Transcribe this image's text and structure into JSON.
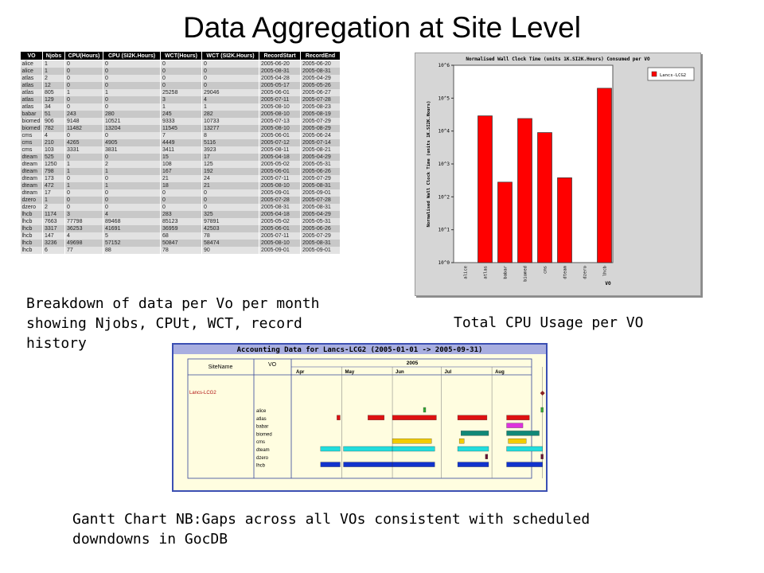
{
  "title": "Data Aggregation at Site Level",
  "table": {
    "columns": [
      "VO",
      "Njobs",
      "CPU(Hours)",
      "CPU (SI2K.Hours)",
      "WCT(Hours)",
      "WCT (SI2K.Hours)",
      "RecordStart",
      "RecordEnd"
    ],
    "rows": [
      [
        "alice",
        "1",
        "0",
        "0",
        "0",
        "0",
        "2005-06-20",
        "2005-06-20"
      ],
      [
        "alice",
        "1",
        "0",
        "0",
        "0",
        "0",
        "2005-08-31",
        "2005-08-31"
      ],
      [
        "atlas",
        "2",
        "0",
        "0",
        "0",
        "0",
        "2005-04-28",
        "2005-04-29"
      ],
      [
        "atlas",
        "12",
        "0",
        "0",
        "0",
        "0",
        "2005-05-17",
        "2005-05-26"
      ],
      [
        "atlas",
        "805",
        "1",
        "1",
        "25258",
        "29046",
        "2005-06-01",
        "2005-06-27"
      ],
      [
        "atlas",
        "129",
        "0",
        "0",
        "3",
        "4",
        "2005-07-11",
        "2005-07-28"
      ],
      [
        "atlas",
        "34",
        "0",
        "0",
        "1",
        "1",
        "2005-08-10",
        "2005-08-23"
      ],
      [
        "babar",
        "51",
        "243",
        "280",
        "245",
        "282",
        "2005-08-10",
        "2005-08-19"
      ],
      [
        "biomed",
        "906",
        "9148",
        "10521",
        "9333",
        "10733",
        "2005-07-13",
        "2005-07-29"
      ],
      [
        "biomed",
        "782",
        "11482",
        "13204",
        "11545",
        "13277",
        "2005-08-10",
        "2005-08-29"
      ],
      [
        "cms",
        "4",
        "0",
        "0",
        "7",
        "8",
        "2005-06-01",
        "2005-06-24"
      ],
      [
        "cms",
        "210",
        "4265",
        "4905",
        "4449",
        "5116",
        "2005-07-12",
        "2005-07-14"
      ],
      [
        "cms",
        "103",
        "3331",
        "3831",
        "3411",
        "3923",
        "2005-08-11",
        "2005-08-21"
      ],
      [
        "dteam",
        "525",
        "0",
        "0",
        "15",
        "17",
        "2005-04-18",
        "2005-04-29"
      ],
      [
        "dteam",
        "1250",
        "1",
        "2",
        "108",
        "125",
        "2005-05-02",
        "2005-05-31"
      ],
      [
        "dteam",
        "798",
        "1",
        "1",
        "167",
        "192",
        "2005-06-01",
        "2005-06-26"
      ],
      [
        "dteam",
        "173",
        "0",
        "0",
        "21",
        "24",
        "2005-07-11",
        "2005-07-29"
      ],
      [
        "dteam",
        "472",
        "1",
        "1",
        "18",
        "21",
        "2005-08-10",
        "2005-08-31"
      ],
      [
        "dteam",
        "17",
        "0",
        "0",
        "0",
        "0",
        "2005-09-01",
        "2005-09-01"
      ],
      [
        "dzero",
        "1",
        "0",
        "0",
        "0",
        "0",
        "2005-07-28",
        "2005-07-28"
      ],
      [
        "dzero",
        "2",
        "0",
        "0",
        "0",
        "0",
        "2005-08-31",
        "2005-08-31"
      ],
      [
        "lhcb",
        "1174",
        "3",
        "4",
        "283",
        "325",
        "2005-04-18",
        "2005-04-29"
      ],
      [
        "lhcb",
        "7663",
        "77798",
        "89468",
        "85123",
        "97891",
        "2005-05-02",
        "2005-05-31"
      ],
      [
        "lhcb",
        "3317",
        "36253",
        "41691",
        "36959",
        "42503",
        "2005-06-01",
        "2005-06-26"
      ],
      [
        "lhcb",
        "147",
        "4",
        "5",
        "68",
        "78",
        "2005-07-11",
        "2005-07-29"
      ],
      [
        "lhcb",
        "3236",
        "49698",
        "57152",
        "50847",
        "58474",
        "2005-08-10",
        "2005-08-31"
      ],
      [
        "lhcb",
        "6",
        "77",
        "88",
        "78",
        "90",
        "2005-09-01",
        "2005-09-01"
      ]
    ]
  },
  "captions": {
    "table": "Breakdown of data per Vo per month showing Njobs, CPUt, WCT, record history",
    "chart": "Total CPU Usage per VO",
    "gantt": "Gantt Chart NB:Gaps across all VOs consistent with scheduled downdowns in GocDB"
  },
  "chart_data": [
    {
      "type": "bar",
      "title": "Normalised Wall Clock Time (units 1K.SI2K.Hours) Consumed per VO",
      "ylabel": "Normalised Wall Clock Time (units 1K.SI2K.Hours)",
      "xlabel": "VO",
      "yscale": "log",
      "ylim": [
        1,
        1000000
      ],
      "ytick_labels": [
        "10^0",
        "10^1",
        "10^2",
        "10^3",
        "10^4",
        "10^5",
        "10^6"
      ],
      "legend": {
        "label": "Lancs-LCG2",
        "position": "top-right"
      },
      "categories": [
        "alice",
        "atlas",
        "babar",
        "biomed",
        "cms",
        "dteam",
        "dzero",
        "lhcb"
      ],
      "series": [
        {
          "name": "Lancs-LCG2",
          "color": "#ff0000",
          "values": [
            0,
            29000,
            280,
            24000,
            9000,
            380,
            0,
            200000
          ]
        }
      ]
    },
    {
      "type": "gantt",
      "title": "Accounting Data for Lancs-LCG2 (2005-01-01 -> 2005-09-31)",
      "headers": {
        "site": "SiteName",
        "vo": "VO",
        "year": "2005"
      },
      "months": [
        "Apr",
        "May",
        "Jun",
        "Jul",
        "Aug"
      ],
      "site": "Lancs-LCG2",
      "vos": [
        "alice",
        "atlas",
        "babar",
        "biomed",
        "cms",
        "dteam",
        "dzero",
        "lhcb"
      ],
      "colors": {
        "alice": "#33aa33",
        "atlas": "#dd1111",
        "babar": "#dd33dd",
        "biomed": "#118877",
        "cms": "#f3cc00",
        "dteam": "#22dddd",
        "dzero": "#661133",
        "lhcb": "#1133cc",
        "site": "#882222"
      },
      "tasks": [
        {
          "vo": "alice",
          "start": "2005-06-20",
          "end": "2005-06-20"
        },
        {
          "vo": "alice",
          "start": "2005-08-31",
          "end": "2005-08-31"
        },
        {
          "vo": "atlas",
          "start": "2005-04-28",
          "end": "2005-04-29"
        },
        {
          "vo": "atlas",
          "start": "2005-05-17",
          "end": "2005-05-26"
        },
        {
          "vo": "atlas",
          "start": "2005-06-01",
          "end": "2005-06-27"
        },
        {
          "vo": "atlas",
          "start": "2005-07-11",
          "end": "2005-07-28"
        },
        {
          "vo": "atlas",
          "start": "2005-08-10",
          "end": "2005-08-23"
        },
        {
          "vo": "babar",
          "start": "2005-08-10",
          "end": "2005-08-19"
        },
        {
          "vo": "biomed",
          "start": "2005-07-13",
          "end": "2005-07-29"
        },
        {
          "vo": "biomed",
          "start": "2005-08-10",
          "end": "2005-08-29"
        },
        {
          "vo": "cms",
          "start": "2005-06-01",
          "end": "2005-06-24"
        },
        {
          "vo": "cms",
          "start": "2005-07-12",
          "end": "2005-07-14"
        },
        {
          "vo": "cms",
          "start": "2005-08-11",
          "end": "2005-08-21"
        },
        {
          "vo": "dteam",
          "start": "2005-04-18",
          "end": "2005-04-29"
        },
        {
          "vo": "dteam",
          "start": "2005-05-02",
          "end": "2005-05-31"
        },
        {
          "vo": "dteam",
          "start": "2005-06-01",
          "end": "2005-06-26"
        },
        {
          "vo": "dteam",
          "start": "2005-07-11",
          "end": "2005-07-29"
        },
        {
          "vo": "dteam",
          "start": "2005-08-10",
          "end": "2005-08-31"
        },
        {
          "vo": "dzero",
          "start": "2005-07-28",
          "end": "2005-07-28"
        },
        {
          "vo": "dzero",
          "start": "2005-08-31",
          "end": "2005-08-31"
        },
        {
          "vo": "lhcb",
          "start": "2005-04-18",
          "end": "2005-04-29"
        },
        {
          "vo": "lhcb",
          "start": "2005-05-02",
          "end": "2005-05-31"
        },
        {
          "vo": "lhcb",
          "start": "2005-06-01",
          "end": "2005-06-26"
        },
        {
          "vo": "lhcb",
          "start": "2005-07-11",
          "end": "2005-07-29"
        },
        {
          "vo": "lhcb",
          "start": "2005-08-10",
          "end": "2005-08-31"
        }
      ]
    }
  ]
}
